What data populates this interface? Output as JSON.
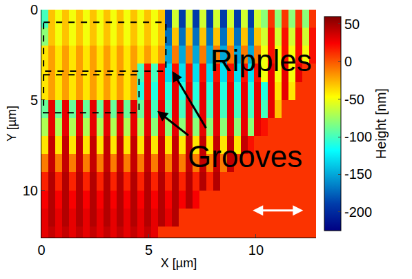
{
  "chart_data": {
    "type": "heatmap",
    "x_label": "X [µm]",
    "y_label": "Y [µm]",
    "annotations": [
      "Ripples",
      "Grooves"
    ],
    "xlim": [
      0,
      12.8
    ],
    "ylim": [
      12.6,
      0
    ],
    "xticks": [
      0,
      5,
      10
    ],
    "yticks": [
      0,
      5,
      10
    ],
    "x": [
      0.16,
      0.48,
      0.8,
      1.12,
      1.44,
      1.76,
      2.08,
      2.4,
      2.72,
      3.04,
      3.36,
      3.68,
      4.0,
      4.32,
      4.64,
      4.96,
      5.28,
      5.6,
      5.92,
      6.24,
      6.56,
      6.88,
      7.2,
      7.52,
      7.84,
      8.16,
      8.48,
      8.8,
      9.12,
      9.44,
      9.76,
      10.08,
      10.4,
      10.72,
      11.04,
      11.36,
      11.68,
      12.0,
      12.32,
      12.64
    ],
    "y": [
      0.5,
      1.5,
      2.5,
      3.5,
      4.5,
      5.5,
      6.5,
      7.5,
      8.5,
      9.5,
      10.5,
      11.5,
      12.5
    ],
    "z": [
      [
        -100,
        -30,
        -50,
        -30,
        -50,
        -30,
        -50,
        -30,
        -50,
        -30,
        -50,
        -30,
        -50,
        -30,
        -50,
        -30,
        -50,
        -30,
        -190,
        -60,
        -190,
        -60,
        -190,
        -60,
        -190,
        -60,
        -190,
        -60,
        -190,
        -60,
        -190,
        -60,
        -80,
        10,
        -80,
        10,
        -80,
        10,
        -80,
        10
      ],
      [
        -80,
        -30,
        -50,
        -30,
        -50,
        -30,
        -50,
        -30,
        -50,
        -30,
        -50,
        -30,
        -50,
        -30,
        -50,
        -30,
        -50,
        -30,
        -170,
        -30,
        -170,
        -30,
        -170,
        -30,
        -170,
        -30,
        -170,
        -30,
        -170,
        -30,
        -170,
        -30,
        -60,
        20,
        -60,
        20,
        -60,
        20,
        -60,
        20
      ],
      [
        -40,
        -20,
        -40,
        -20,
        -40,
        -20,
        -40,
        -20,
        -40,
        -20,
        -40,
        -20,
        -40,
        -20,
        -40,
        -20,
        -40,
        -20,
        -150,
        -10,
        -150,
        -10,
        -150,
        -10,
        -150,
        -10,
        -150,
        -10,
        -150,
        -10,
        -150,
        -10,
        -50,
        20,
        -50,
        20,
        -50,
        20,
        -50,
        20
      ],
      [
        -40,
        -20,
        -40,
        -20,
        -40,
        -20,
        -40,
        -20,
        -40,
        -20,
        -40,
        -20,
        -40,
        -20,
        -100,
        20,
        -100,
        20,
        -130,
        20,
        -130,
        20,
        -130,
        20,
        -130,
        20,
        -130,
        20,
        -130,
        20,
        -130,
        20,
        -50,
        30,
        -50,
        30,
        -50,
        30,
        10,
        10
      ],
      [
        -40,
        -20,
        -40,
        -20,
        -40,
        -20,
        -40,
        -20,
        -40,
        -20,
        -40,
        -20,
        -40,
        -20,
        -110,
        20,
        -110,
        20,
        -110,
        30,
        -110,
        30,
        -110,
        30,
        -110,
        30,
        -110,
        30,
        -110,
        30,
        -110,
        30,
        -110,
        30,
        -40,
        30,
        -40,
        10,
        10,
        10
      ],
      [
        -90,
        30,
        -90,
        30,
        -90,
        30,
        -90,
        30,
        -90,
        30,
        -90,
        30,
        -90,
        30,
        -90,
        30,
        -100,
        30,
        -100,
        30,
        -100,
        30,
        -100,
        30,
        -100,
        30,
        -100,
        30,
        -100,
        30,
        -100,
        30,
        -100,
        30,
        -30,
        10,
        10,
        10,
        10,
        10
      ],
      [
        -70,
        30,
        -70,
        30,
        -70,
        30,
        -70,
        30,
        -70,
        30,
        -70,
        30,
        -70,
        30,
        -70,
        30,
        -80,
        30,
        -80,
        30,
        -80,
        30,
        -80,
        30,
        -80,
        30,
        -80,
        30,
        -80,
        30,
        -80,
        30,
        20,
        10,
        10,
        10,
        10,
        10,
        10,
        10
      ],
      [
        -40,
        40,
        -40,
        40,
        -40,
        40,
        -40,
        40,
        -40,
        40,
        -40,
        40,
        -40,
        40,
        -40,
        40,
        -40,
        40,
        -40,
        40,
        -40,
        40,
        -40,
        40,
        -40,
        40,
        -40,
        40,
        -40,
        40,
        20,
        10,
        10,
        10,
        10,
        10,
        10,
        10,
        10,
        10
      ],
      [
        -10,
        40,
        -10,
        40,
        -10,
        40,
        -10,
        40,
        -10,
        40,
        -10,
        40,
        -10,
        40,
        -10,
        40,
        -10,
        40,
        -10,
        40,
        -10,
        40,
        -10,
        40,
        -10,
        40,
        -10,
        40,
        10,
        10,
        10,
        10,
        10,
        10,
        10,
        10,
        10,
        10,
        10,
        10
      ],
      [
        15,
        45,
        15,
        45,
        15,
        45,
        15,
        45,
        15,
        45,
        15,
        45,
        15,
        45,
        15,
        45,
        15,
        45,
        15,
        45,
        15,
        45,
        15,
        45,
        15,
        45,
        10,
        10,
        10,
        10,
        10,
        10,
        10,
        10,
        10,
        10,
        10,
        10,
        10,
        10
      ],
      [
        25,
        45,
        25,
        45,
        25,
        45,
        25,
        45,
        25,
        45,
        25,
        45,
        25,
        45,
        25,
        45,
        25,
        45,
        25,
        45,
        25,
        45,
        25,
        10,
        10,
        10,
        10,
        10,
        10,
        10,
        10,
        10,
        10,
        10,
        10,
        10,
        10,
        10,
        10,
        10
      ],
      [
        30,
        45,
        30,
        45,
        30,
        45,
        30,
        45,
        30,
        45,
        30,
        45,
        30,
        45,
        30,
        45,
        30,
        45,
        30,
        45,
        10,
        10,
        10,
        10,
        10,
        10,
        10,
        10,
        10,
        10,
        10,
        10,
        10,
        10,
        10,
        10,
        10,
        10,
        10,
        10
      ],
      [
        30,
        40,
        30,
        40,
        30,
        40,
        30,
        40,
        30,
        40,
        30,
        40,
        30,
        40,
        30,
        40,
        30,
        10,
        10,
        10,
        10,
        10,
        10,
        10,
        10,
        10,
        10,
        10,
        10,
        10,
        10,
        10,
        10,
        10,
        10,
        10,
        10,
        10,
        10,
        10
      ]
    ],
    "colorbar": {
      "title": "Height [nm]",
      "range": [
        -225,
        60
      ],
      "ticks": [
        50,
        0,
        -50,
        -100,
        -150,
        -200
      ]
    }
  }
}
